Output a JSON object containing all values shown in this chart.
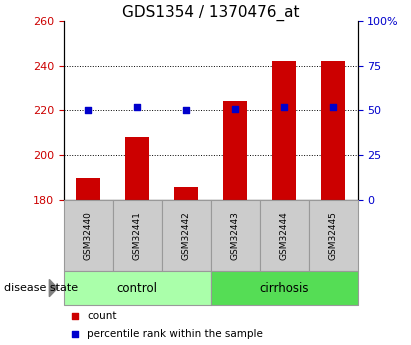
{
  "title": "GDS1354 / 1370476_at",
  "samples": [
    "GSM32440",
    "GSM32441",
    "GSM32442",
    "GSM32443",
    "GSM32444",
    "GSM32445"
  ],
  "bar_values": [
    190,
    208,
    186,
    224,
    242,
    242
  ],
  "percentile_values": [
    50,
    52,
    50,
    51,
    52,
    52
  ],
  "bar_color": "#cc0000",
  "percentile_color": "#0000cc",
  "ylim_left": [
    180,
    260
  ],
  "ylim_right": [
    0,
    100
  ],
  "yticks_left": [
    180,
    200,
    220,
    240,
    260
  ],
  "yticks_right": [
    0,
    25,
    50,
    75,
    100
  ],
  "ytick_labels_right": [
    "0",
    "25",
    "50",
    "75",
    "100%"
  ],
  "groups": [
    {
      "label": "control",
      "indices": [
        0,
        1,
        2
      ],
      "color": "#aaffaa"
    },
    {
      "label": "cirrhosis",
      "indices": [
        3,
        4,
        5
      ],
      "color": "#55dd55"
    }
  ],
  "group_label_prefix": "disease state",
  "legend": [
    {
      "label": "count",
      "color": "#cc0000",
      "marker": "s"
    },
    {
      "label": "percentile rank within the sample",
      "color": "#0000cc",
      "marker": "s"
    }
  ],
  "bar_width": 0.5,
  "bar_bottom": 180,
  "grid_color": "#000000",
  "bg_color": "#ffffff",
  "plot_bg_color": "#ffffff",
  "tick_label_color_left": "#cc0000",
  "tick_label_color_right": "#0000cc",
  "title_fontsize": 11,
  "tick_fontsize": 8,
  "sample_fontsize": 6.5,
  "group_fontsize": 8.5,
  "legend_fontsize": 7.5,
  "group_box_color": "#999999",
  "sample_box_bg": "#cccccc"
}
